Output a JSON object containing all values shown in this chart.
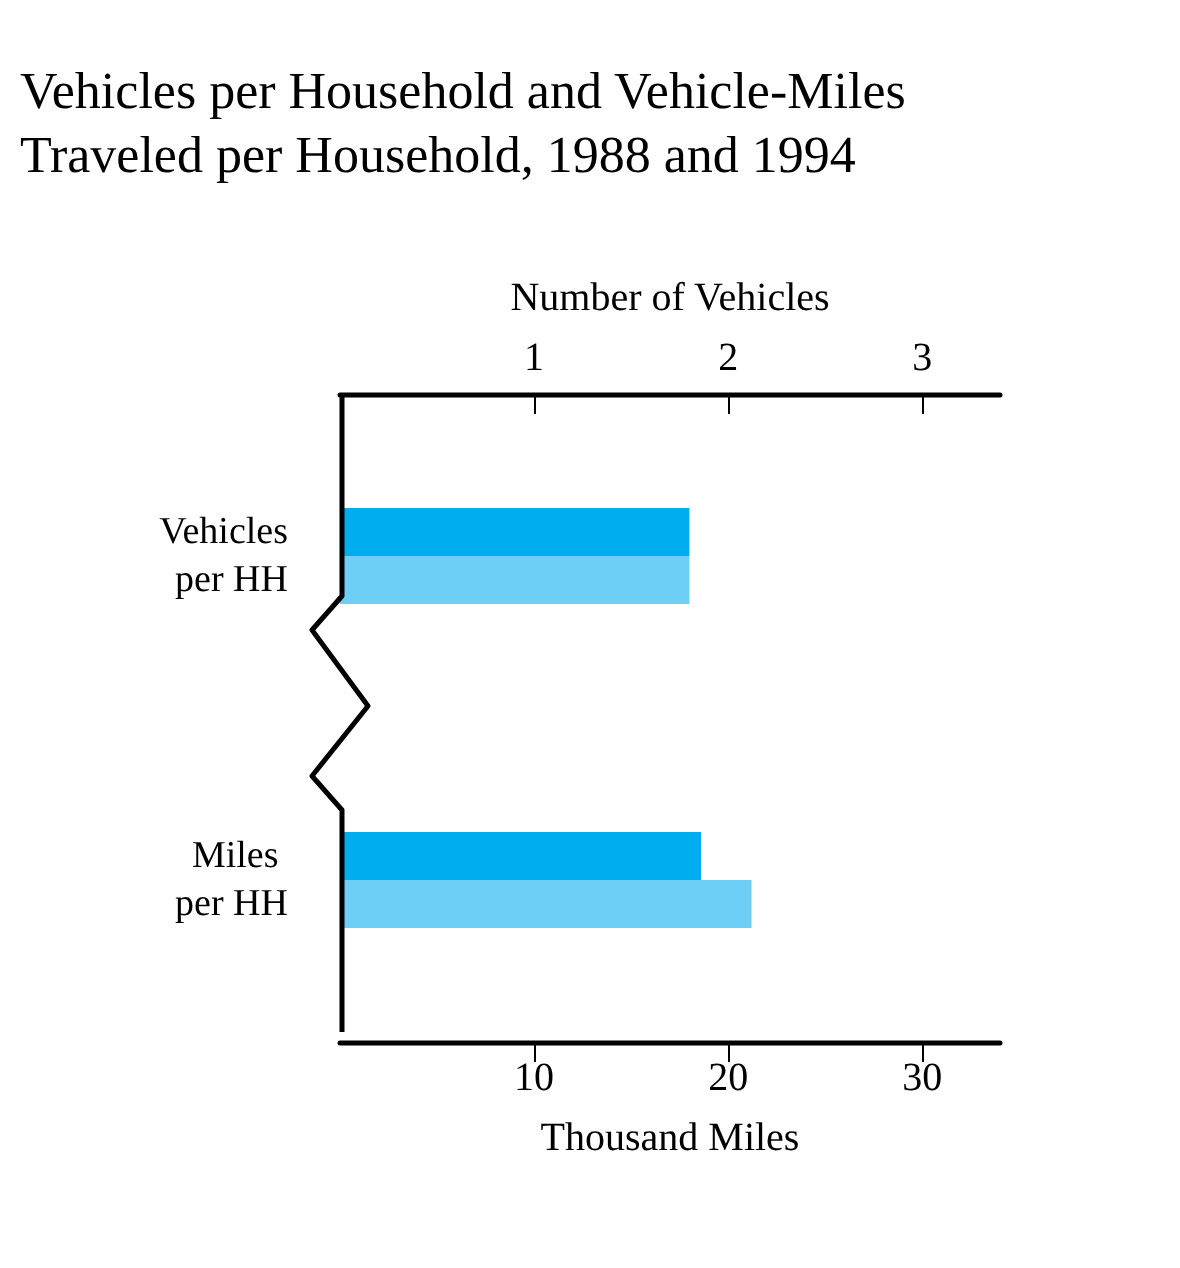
{
  "chart_data": {
    "type": "bar",
    "orientation": "horizontal",
    "title": "Vehicles per Household and Vehicle-Miles Traveled per Household, 1988 and 1994",
    "x2label": "Number of Vehicles",
    "xlabel": "Thousand Miles",
    "categories": [
      "Vehicles per HH",
      "Miles per HH"
    ],
    "series": [
      {
        "color": "#00aeef",
        "axis": "x2",
        "values": [
          1.8,
          null
        ]
      },
      {
        "color": "#6dcff6",
        "axis": "x2",
        "values": [
          1.8,
          null
        ]
      },
      {
        "color": "#00aeef",
        "values": [
          null,
          18.6
        ]
      },
      {
        "color": "#6dcff6",
        "values": [
          null,
          21.2
        ]
      }
    ],
    "x2lim": [
      0,
      3.4
    ],
    "x2ticks": [
      1,
      2,
      3
    ],
    "xlim": [
      0,
      34
    ],
    "xticks": [
      10,
      20,
      30
    ]
  }
}
